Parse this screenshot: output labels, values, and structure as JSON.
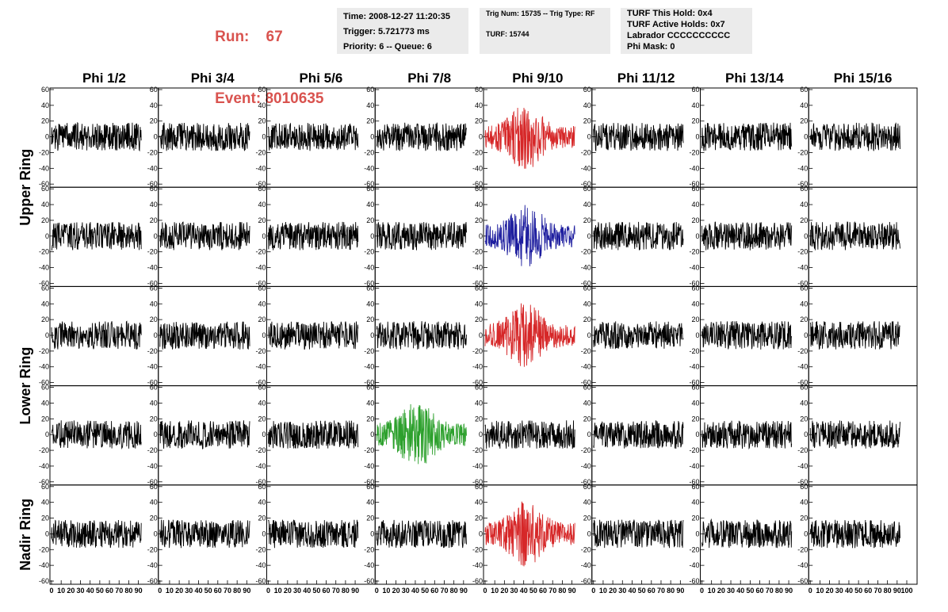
{
  "header": {
    "run_label": "Run:",
    "run_value": "67",
    "event_label": "Event:",
    "event_value": "8010635",
    "highlight_color": "#d9534f"
  },
  "info_panels": {
    "time_panel": {
      "lines": [
        "Time: 2008-12-27 11:20:35",
        "Trigger: 5.721773 ms",
        "Priority: 6 -- Queue: 6"
      ]
    },
    "trig_panel": {
      "lines": [
        "Trig Num: 15735 -- Trig Type: RF",
        "TURF: 15744"
      ]
    },
    "turf_panel": {
      "lines": [
        "TURF This Hold: 0x4",
        "TURF Active Holds: 0x7",
        "Labrador CCCCCCCCCC",
        "Phi Mask: 0"
      ]
    }
  },
  "chart_data": {
    "type": "line",
    "columns": [
      "Phi 1/2",
      "Phi 3/4",
      "Phi 5/6",
      "Phi 7/8",
      "Phi 9/10",
      "Phi 11/12",
      "Phi 13/14",
      "Phi 15/16"
    ],
    "ring_groups": [
      {
        "label": "Upper Ring",
        "rows": [
          0,
          1
        ]
      },
      {
        "label": "Lower Ring",
        "rows": [
          2,
          3
        ]
      },
      {
        "label": "Nadir Ring",
        "rows": [
          4
        ]
      }
    ],
    "ylim": [
      -60,
      60
    ],
    "y_ticks": [
      -60,
      -40,
      -20,
      0,
      20,
      40,
      60
    ],
    "xlim": [
      0,
      100
    ],
    "x_ticks": [
      0,
      10,
      20,
      30,
      40,
      50,
      60,
      70,
      80,
      90,
      100
    ],
    "x_samples": 260,
    "highlighted": [
      {
        "row": 0,
        "col": 4,
        "color": "#d62728"
      },
      {
        "row": 1,
        "col": 4,
        "color": "#1f1f9f"
      },
      {
        "row": 2,
        "col": 4,
        "color": "#d62728"
      },
      {
        "row": 3,
        "col": 3,
        "color": "#2ca02c"
      },
      {
        "row": 4,
        "col": 4,
        "color": "#d62728"
      }
    ],
    "default_trace_color": "#000000"
  }
}
